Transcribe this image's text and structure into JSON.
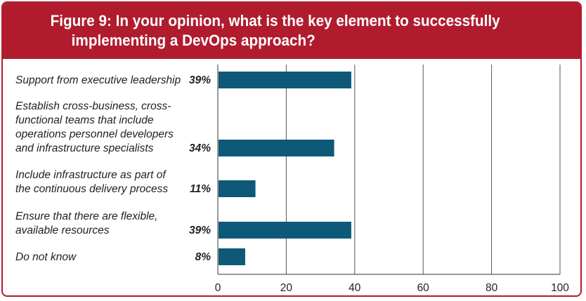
{
  "colors": {
    "header": "#b01c2e",
    "bar": "#0d5977",
    "grid": "#555555"
  },
  "chart_data": {
    "type": "bar",
    "orientation": "horizontal",
    "title": "Figure 9: In your opinion, what is the key element to successfully implementing a DevOps approach?",
    "categories": [
      [
        "Support from executive leadership"
      ],
      [
        "Establish cross-business, cross-",
        "functional teams that include",
        "operations personnel developers",
        "and infrastructure specialists"
      ],
      [
        "Include infrastructure as part of",
        "the continuous delivery process"
      ],
      [
        "Ensure that there are flexible,",
        "available resources"
      ],
      [
        "Do not know"
      ]
    ],
    "values": [
      39,
      34,
      11,
      39,
      8
    ],
    "value_labels": [
      "39%",
      "34%",
      "11%",
      "39%",
      "8%"
    ],
    "xlim": [
      0,
      100
    ],
    "xticks": [
      "0",
      "20",
      "40",
      "60",
      "80",
      "100"
    ],
    "grid": true
  }
}
